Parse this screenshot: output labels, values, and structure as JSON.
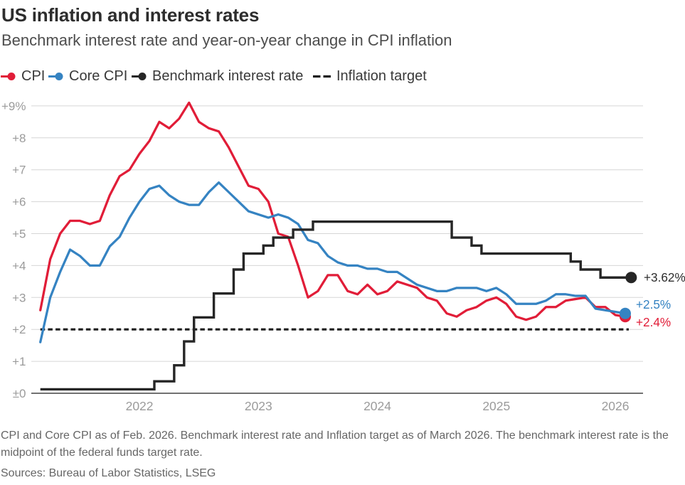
{
  "header": {
    "title": "US inflation and interest rates",
    "subtitle": "Benchmark interest rate and year-on-year change in CPI inflation"
  },
  "colors": {
    "cpi": "#e11d38",
    "core_cpi": "#3583c2",
    "benchmark": "#262626",
    "inflation_target": "#1f1f1f",
    "grid": "#d6d6d6",
    "axis": "#444444",
    "tick_label": "#9b9b9b",
    "end_label_benchmark": "#2d2d2d"
  },
  "legend": [
    {
      "label": "CPI",
      "marker": "line-dot",
      "color": "#e11d38"
    },
    {
      "label": "Core CPI",
      "marker": "line-dot",
      "color": "#3583c2"
    },
    {
      "label": "Benchmark interest rate",
      "marker": "line-dot",
      "color": "#262626"
    },
    {
      "label": "Inflation target",
      "marker": "dashes",
      "color": "#1f1f1f"
    }
  ],
  "chart_data": {
    "type": "line",
    "title": "US inflation and interest rates",
    "subtitle": "Benchmark interest rate and year-on-year change in CPI inflation",
    "x_start_month": "2021-03",
    "x_tick_labels": [
      "2022",
      "2023",
      "2024",
      "2025",
      "2026"
    ],
    "x_tick_month_index": [
      10,
      22,
      34,
      46,
      58
    ],
    "y_tick_labels": [
      "±0",
      "+1",
      "+2",
      "+3",
      "+4",
      "+5",
      "+6",
      "+7",
      "+8",
      "+9%"
    ],
    "y_tick_values": [
      0,
      1,
      2,
      3,
      4,
      5,
      6,
      7,
      8,
      9
    ],
    "ylim": [
      0,
      9
    ],
    "grid": true,
    "legend_position": "top",
    "series": [
      {
        "name": "CPI",
        "color": "#e11d38",
        "style": "line",
        "end_month": "2026-02",
        "values": [
          2.6,
          4.2,
          5.0,
          5.4,
          5.4,
          5.3,
          5.4,
          6.2,
          6.8,
          7.0,
          7.5,
          7.9,
          8.5,
          8.3,
          8.6,
          9.1,
          8.5,
          8.3,
          8.2,
          7.7,
          7.1,
          6.5,
          6.4,
          6.0,
          5.0,
          4.9,
          4.0,
          3.0,
          3.2,
          3.7,
          3.7,
          3.2,
          3.1,
          3.4,
          3.1,
          3.2,
          3.5,
          3.4,
          3.3,
          3.0,
          2.9,
          2.5,
          2.4,
          2.6,
          2.7,
          2.9,
          3.0,
          2.8,
          2.4,
          2.3,
          2.4,
          2.7,
          2.7,
          2.9,
          2.95,
          3.0,
          2.7,
          2.7,
          2.45,
          2.4
        ]
      },
      {
        "name": "Core CPI",
        "color": "#3583c2",
        "style": "line",
        "end_month": "2026-02",
        "values": [
          1.6,
          3.0,
          3.8,
          4.5,
          4.3,
          4.0,
          4.0,
          4.6,
          4.9,
          5.5,
          6.0,
          6.4,
          6.5,
          6.2,
          6.0,
          5.9,
          5.9,
          6.3,
          6.6,
          6.3,
          6.0,
          5.7,
          5.6,
          5.5,
          5.6,
          5.5,
          5.3,
          4.8,
          4.7,
          4.3,
          4.1,
          4.0,
          4.0,
          3.9,
          3.9,
          3.8,
          3.8,
          3.6,
          3.4,
          3.3,
          3.2,
          3.2,
          3.3,
          3.3,
          3.3,
          3.2,
          3.3,
          3.1,
          2.8,
          2.8,
          2.8,
          2.9,
          3.1,
          3.1,
          3.05,
          3.05,
          2.65,
          2.6,
          2.55,
          2.5
        ]
      },
      {
        "name": "Benchmark interest rate",
        "color": "#262626",
        "style": "step-mid",
        "end_month": "2026-03",
        "values": [
          0.125,
          0.125,
          0.125,
          0.125,
          0.125,
          0.125,
          0.125,
          0.125,
          0.125,
          0.125,
          0.125,
          0.125,
          0.375,
          0.375,
          0.875,
          1.625,
          2.375,
          2.375,
          3.125,
          3.125,
          3.875,
          4.375,
          4.375,
          4.625,
          4.875,
          4.875,
          5.125,
          5.125,
          5.375,
          5.375,
          5.375,
          5.375,
          5.375,
          5.375,
          5.375,
          5.375,
          5.375,
          5.375,
          5.375,
          5.375,
          5.375,
          5.375,
          4.875,
          4.875,
          4.625,
          4.375,
          4.375,
          4.375,
          4.375,
          4.375,
          4.375,
          4.375,
          4.375,
          4.375,
          4.125,
          3.875,
          3.875,
          3.625,
          3.625,
          3.625,
          3.625
        ]
      },
      {
        "name": "Inflation target",
        "color": "#1f1f1f",
        "style": "dashed-constant",
        "value": 2
      }
    ],
    "end_labels": [
      {
        "series": "Benchmark interest rate",
        "text": "+3.62%",
        "color": "#2d2d2d"
      },
      {
        "series": "Core CPI",
        "text": "+2.5%",
        "color": "#3583c2"
      },
      {
        "series": "CPI",
        "text": "+2.4%",
        "color": "#e11d38"
      }
    ]
  },
  "footer": {
    "note": "CPI and Core CPI as of Feb. 2026. Benchmark interest rate and Inflation target as of March 2026. The benchmark interest rate is the midpoint of the federal funds target rate.",
    "sources": "Sources: Bureau of Labor Statistics, LSEG"
  }
}
